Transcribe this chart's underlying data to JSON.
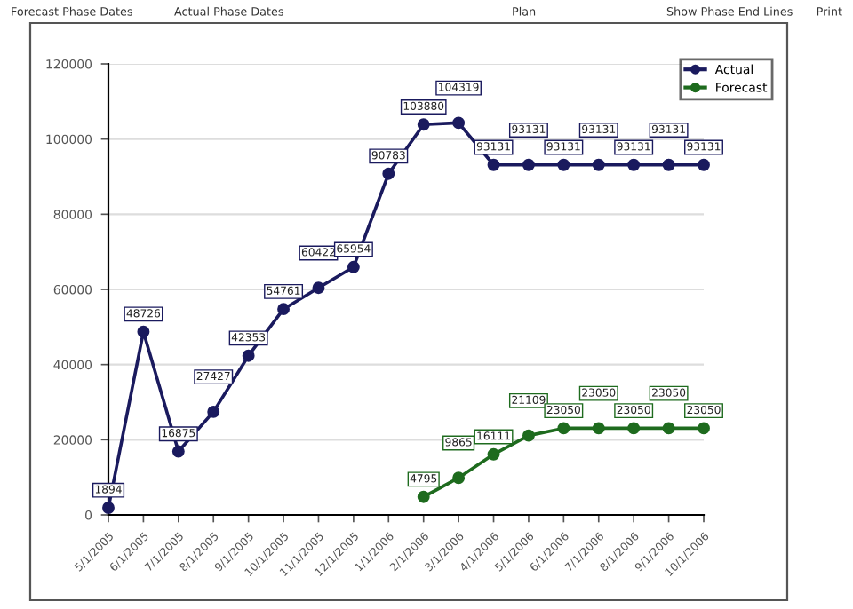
{
  "chart_data": {
    "type": "line",
    "categories": [
      "5/1/2005",
      "6/1/2005",
      "7/1/2005",
      "8/1/2005",
      "9/1/2005",
      "10/1/2005",
      "11/1/2005",
      "12/1/2005",
      "1/1/2006",
      "2/1/2006",
      "3/1/2006",
      "4/1/2006",
      "5/1/2006",
      "6/1/2006",
      "7/1/2006",
      "8/1/2006",
      "9/1/2006",
      "10/1/2006"
    ],
    "series": [
      {
        "name": "Actual",
        "color": "#1a1a5e",
        "values": [
          1894,
          48726,
          16875,
          27427,
          42353,
          54761,
          60422,
          65954,
          90783,
          103880,
          104319,
          93131,
          93131,
          93131,
          93131,
          93131,
          93131,
          93131
        ]
      },
      {
        "name": "Forecast",
        "color": "#1e6b1e",
        "values": [
          null,
          null,
          null,
          null,
          null,
          null,
          null,
          null,
          null,
          4795,
          9865,
          16111,
          21109,
          23050,
          23050,
          23050,
          23050,
          23050
        ]
      }
    ],
    "ylim": [
      0,
      120000
    ],
    "yticks": [
      0,
      20000,
      40000,
      60000,
      80000,
      100000,
      120000
    ],
    "grid": "y",
    "legend": "top right",
    "marker": "circle",
    "line_style": "solid",
    "data_labels": true,
    "annotations": [
      "Forecast Phase Dates",
      "Actual Phase Dates",
      "Plan",
      "Show Phase End Lines",
      "Print"
    ]
  }
}
